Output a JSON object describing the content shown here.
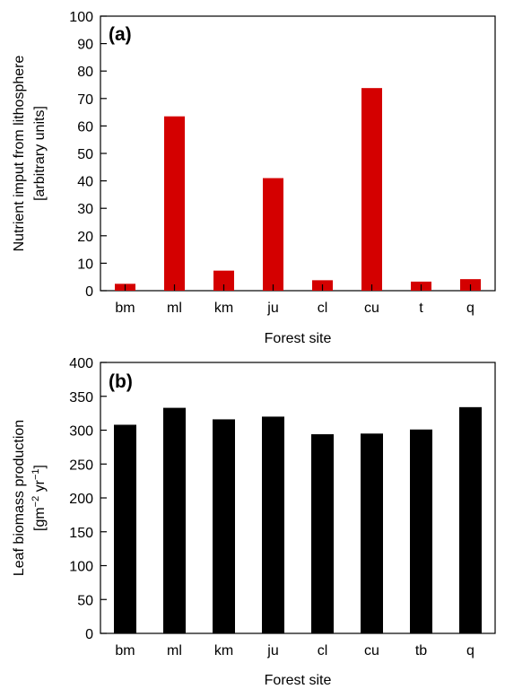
{
  "chart_data": [
    {
      "type": "bar",
      "panel_label": "(a)",
      "categories": [
        "bm",
        "ml",
        "km",
        "ju",
        "cl",
        "cu",
        "t",
        "q"
      ],
      "values": [
        2.5,
        63.5,
        7.3,
        41,
        3.8,
        73.8,
        3.3,
        4.2
      ],
      "xlabel": "Forest site",
      "ylabel_lines": [
        "Nutrient imput from lithosphere",
        "[arbitrary units]"
      ],
      "ylim": [
        0,
        100
      ],
      "yticks": [
        0,
        10,
        20,
        30,
        40,
        50,
        60,
        70,
        80,
        90,
        100
      ],
      "bar_color": "#d40000",
      "grid": false
    },
    {
      "type": "bar",
      "panel_label": "(b)",
      "categories": [
        "bm",
        "ml",
        "km",
        "ju",
        "cl",
        "cu",
        "tb",
        "q"
      ],
      "values": [
        308,
        333,
        316,
        320,
        294,
        295,
        301,
        334
      ],
      "xlabel": "Forest site",
      "ylabel_lines": [
        "Leaf biomass production"
      ],
      "ylabel_unit": {
        "base": "[gm",
        "exp1": "−2",
        "mid": " yr",
        "exp2": "−1",
        "end": "]"
      },
      "ylim": [
        0,
        400
      ],
      "yticks": [
        0,
        50,
        100,
        150,
        200,
        250,
        300,
        350,
        400
      ],
      "bar_color": "#000000",
      "grid": false
    }
  ]
}
